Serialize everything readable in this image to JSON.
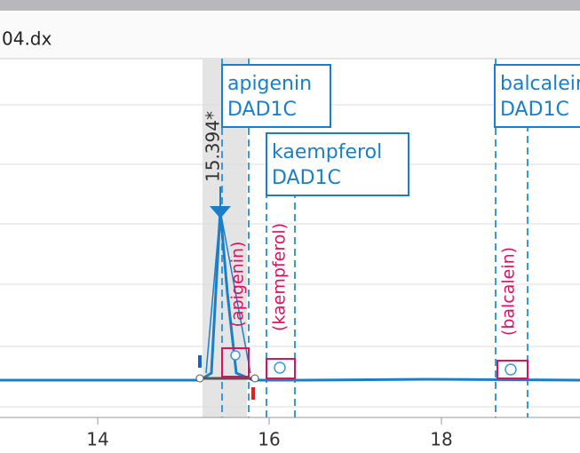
{
  "tab": {
    "title": "04.dx"
  },
  "peak": {
    "label": "15.394*"
  },
  "compounds": [
    {
      "name": "apigenin",
      "detector": "DAD1C",
      "tag": "(apigenin)"
    },
    {
      "name": "kaempferol",
      "detector": "DAD1C",
      "tag": "(kaempferol)"
    },
    {
      "name": "balcalein",
      "detector": "DAD1C",
      "tag": "(balcalein)"
    }
  ],
  "x_axis": {
    "labels": [
      "14",
      "16",
      "18"
    ]
  }
}
